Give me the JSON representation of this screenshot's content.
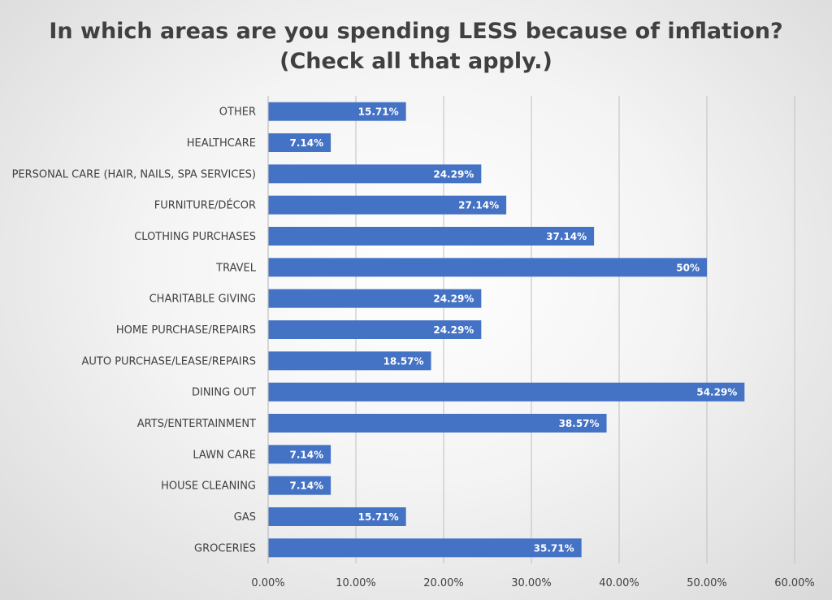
{
  "chart_data": {
    "type": "bar",
    "orientation": "horizontal",
    "title": "In which areas are you spending LESS because of inflation?",
    "subtitle": "(Check all that apply.)",
    "categories": [
      "OTHER",
      "HEALTHCARE",
      "PERSONAL CARE (HAIR, NAILS, SPA SERVICES)",
      "FURNITURE/DÉCOR",
      "CLOTHING PURCHASES",
      "TRAVEL",
      "CHARITABLE GIVING",
      "HOME PURCHASE/REPAIRS",
      "AUTO PURCHASE/LEASE/REPAIRS",
      "DINING OUT",
      "ARTS/ENTERTAINMENT",
      "LAWN CARE",
      "HOUSE CLEANING",
      "GAS",
      "GROCERIES"
    ],
    "values": [
      15.71,
      7.14,
      24.29,
      27.14,
      37.14,
      50,
      24.29,
      24.29,
      18.57,
      54.29,
      38.57,
      7.14,
      7.14,
      15.71,
      35.71
    ],
    "data_labels": [
      "15.71%",
      "7.14%",
      "24.29%",
      "27.14%",
      "37.14%",
      "50%",
      "24.29%",
      "24.29%",
      "18.57%",
      "54.29%",
      "38.57%",
      "7.14%",
      "7.14%",
      "15.71%",
      "35.71%"
    ],
    "x_ticks": [
      "0.00%",
      "10.00%",
      "20.00%",
      "30.00%",
      "40.00%",
      "50.00%",
      "60.00%"
    ],
    "xlim": [
      0,
      60
    ],
    "grid": "vertical",
    "legend": "none",
    "bar_color": "#4472C4",
    "grid_color": "#BFBFBF",
    "text_color": "#404040"
  }
}
